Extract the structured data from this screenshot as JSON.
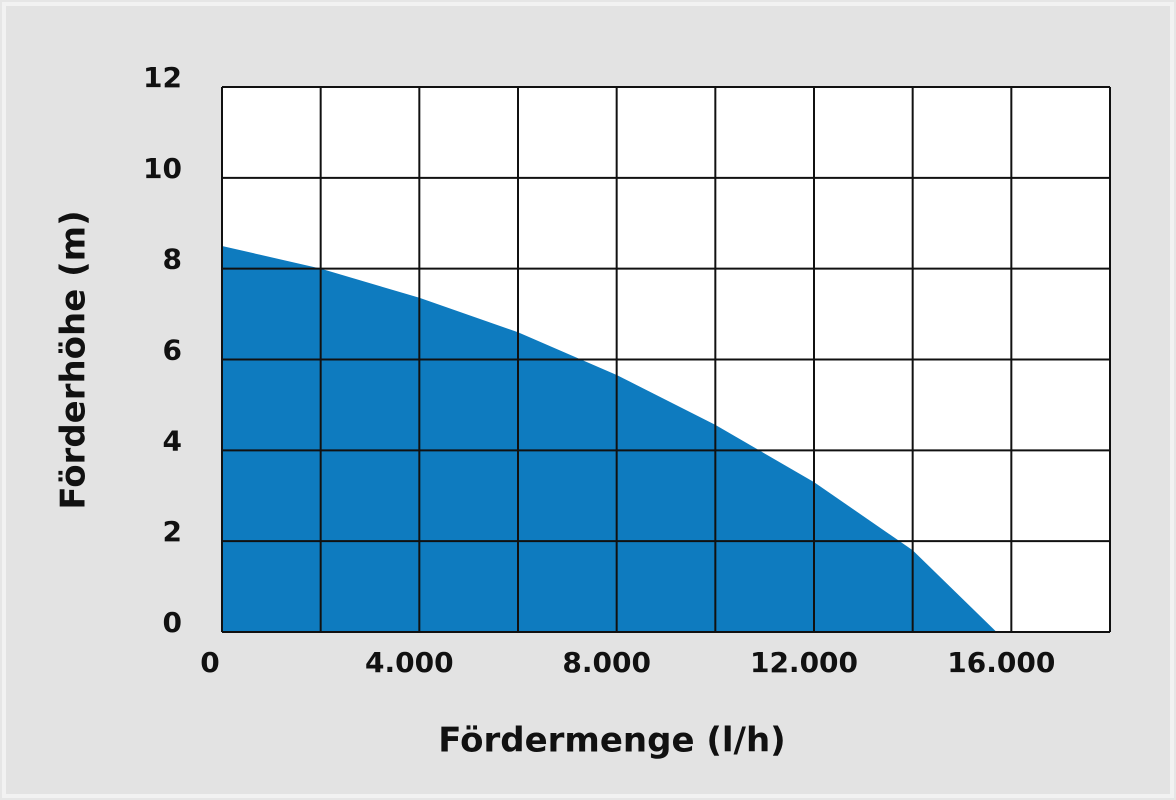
{
  "chart_data": {
    "type": "area",
    "x_label": "Fördermenge (l/h)",
    "y_label": "Förderhöhe (m)",
    "x": [
      0,
      2000,
      4000,
      6000,
      8000,
      10000,
      12000,
      14000,
      15700
    ],
    "values": [
      8.5,
      8.0,
      7.36,
      6.6,
      5.66,
      4.56,
      3.3,
      1.8,
      0
    ],
    "color": "#0e7bbf",
    "xlim": [
      0,
      18000
    ],
    "xticks": [
      0,
      {
        "value": 4000,
        "label": "4.000"
      },
      {
        "value": 8000,
        "label": "8.000"
      },
      {
        "value": 12000,
        "label": "12.000"
      },
      {
        "value": 16000,
        "label": "16.000"
      }
    ],
    "xgrid": [
      2000,
      6000,
      10000,
      14000,
      18000
    ],
    "ylim": [
      0,
      12
    ],
    "yticks": [
      0,
      2,
      4,
      6,
      8,
      10,
      12
    ],
    "grid": true
  }
}
